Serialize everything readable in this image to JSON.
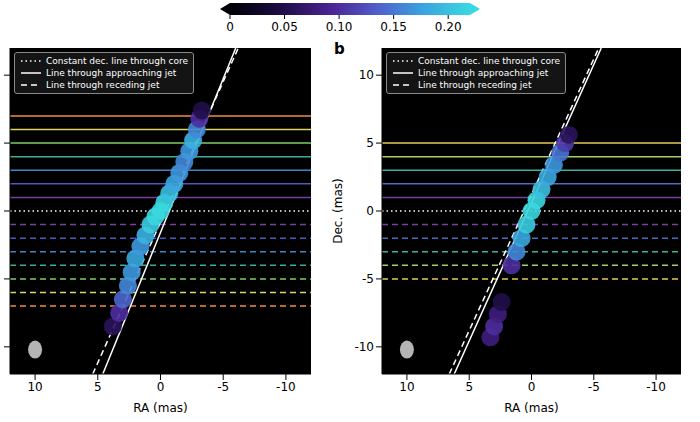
{
  "colorbar": {
    "range": [
      0,
      0.22
    ],
    "ticks": [
      0,
      0.05,
      {
        "value": 0.1,
        "label": "0.10"
      },
      0.15,
      {
        "value": 0.2,
        "label": "0.20"
      }
    ]
  },
  "chart_data": [
    {
      "type": "image",
      "x_label": "RA (mas)",
      "xlim": [
        12,
        -12
      ],
      "ylim": [
        -12,
        12
      ],
      "xticks": [
        10,
        5,
        0,
        -5,
        -10
      ],
      "yticks": [
        -10,
        -5,
        0,
        5,
        10
      ],
      "tick_labels": "x",
      "grid": false,
      "legend": "upper left",
      "intensity": {
        "x": [
          3.8,
          3.3,
          3.0,
          2.6,
          2.3,
          2.0,
          1.6,
          1.2,
          0.8,
          0.4,
          0,
          -0.3,
          -0.7,
          -1.1,
          -1.5,
          -1.9,
          -2.3,
          -2.6,
          -2.9,
          -3.1,
          -3.3
        ],
        "y": [
          -8.5,
          -7.5,
          -6.5,
          -5.5,
          -4.5,
          -3.5,
          -2.6,
          -1.8,
          -1.0,
          -0.4,
          0,
          0.6,
          1.3,
          2.0,
          2.8,
          3.6,
          4.4,
          5.2,
          6.0,
          6.8,
          7.4
        ],
        "values": [
          0.06,
          0.1,
          0.14,
          0.16,
          0.17,
          0.18,
          0.17,
          0.19,
          0.21,
          0.22,
          0.24,
          0.22,
          0.2,
          0.18,
          0.17,
          0.16,
          0.17,
          0.19,
          0.16,
          0.1,
          0.05
        ]
      },
      "series": [
        {
          "name": "Constant dec. line through core",
          "color": "#ffffff",
          "line_style": "dotted",
          "x": [
            12,
            -12
          ],
          "values": [
            0,
            0
          ]
        },
        {
          "name": "Line through approaching jet",
          "color": "#ffffff",
          "line_style": "solid",
          "x": [
            4.6,
            -6.0
          ],
          "values": [
            -12,
            12
          ]
        },
        {
          "name": "Line through receding jet",
          "color": "#ffffff",
          "line_style": "dashed",
          "x": [
            5.4,
            -6.2
          ],
          "values": [
            -12,
            12
          ]
        }
      ],
      "dec_lines": [
        {
          "value": 7,
          "color": "#f08c45",
          "line_style": "solid"
        },
        {
          "value": 6,
          "color": "#d9d864",
          "line_style": "solid"
        },
        {
          "value": 5,
          "color": "#7ccb6a",
          "line_style": "solid"
        },
        {
          "value": 4,
          "color": "#3aac9c",
          "line_style": "solid"
        },
        {
          "value": 3,
          "color": "#3f86c4",
          "line_style": "solid"
        },
        {
          "value": 2,
          "color": "#4f57c4",
          "line_style": "solid"
        },
        {
          "value": 1,
          "color": "#7a3fa0",
          "line_style": "solid"
        },
        {
          "value": -1,
          "color": "#7a3fa0",
          "line_style": "dashed"
        },
        {
          "value": -2,
          "color": "#4f57c4",
          "line_style": "dashed"
        },
        {
          "value": -3,
          "color": "#3f86c4",
          "line_style": "dashed"
        },
        {
          "value": -4,
          "color": "#3aac9c",
          "line_style": "dashed"
        },
        {
          "value": -5,
          "color": "#7ccb6a",
          "line_style": "dashed"
        },
        {
          "value": -6,
          "color": "#d9d864",
          "line_style": "dashed"
        },
        {
          "value": -7,
          "color": "#f08c45",
          "line_style": "dashed"
        }
      ],
      "beam": {
        "x": 10,
        "y": -10.2
      }
    },
    {
      "type": "image",
      "panel_label": "b",
      "x_label": "RA (mas)",
      "y_label": "Dec. (mas)",
      "xlim": [
        12,
        -12
      ],
      "ylim": [
        -12,
        12
      ],
      "xticks": [
        10,
        5,
        0,
        -5,
        -10
      ],
      "yticks": [
        -10,
        -5,
        0,
        5,
        10
      ],
      "grid": false,
      "legend": "upper left",
      "intensity": {
        "x": [
          3.3,
          3.0,
          2.7,
          2.4,
          1.6,
          1.2,
          0.8,
          0.4,
          0,
          -0.4,
          -0.8,
          -1.3,
          -1.8,
          -2.3,
          -2.7,
          -3.0
        ],
        "y": [
          -9.3,
          -8.5,
          -7.6,
          -6.7,
          -4.0,
          -3.0,
          -2.0,
          -1.0,
          0,
          0.8,
          1.6,
          2.5,
          3.4,
          4.3,
          5.0,
          5.6
        ],
        "values": [
          0.08,
          0.1,
          0.08,
          0.05,
          0.1,
          0.16,
          0.18,
          0.21,
          0.24,
          0.22,
          0.2,
          0.18,
          0.17,
          0.15,
          0.11,
          0.06
        ]
      },
      "series": [
        {
          "name": "Constant dec. line through core",
          "color": "#ffffff",
          "line_style": "dotted",
          "x": [
            12,
            -12
          ],
          "values": [
            0,
            0
          ]
        },
        {
          "name": "Line through approaching jet",
          "color": "#ffffff",
          "line_style": "solid",
          "x": [
            6.2,
            -5.6
          ],
          "values": [
            -12,
            12
          ]
        },
        {
          "name": "Line through receding jet",
          "color": "#ffffff",
          "line_style": "dashed",
          "x": [
            6.6,
            -5.4
          ],
          "values": [
            -12,
            12
          ]
        }
      ],
      "dec_lines": [
        {
          "value": 5,
          "color": "#e8c85a",
          "line_style": "solid"
        },
        {
          "value": 4,
          "color": "#a6d06a",
          "line_style": "solid"
        },
        {
          "value": 3,
          "color": "#3fb0a0",
          "line_style": "solid"
        },
        {
          "value": 2,
          "color": "#4f6ac4",
          "line_style": "solid"
        },
        {
          "value": 1,
          "color": "#7a3fa0",
          "line_style": "solid"
        },
        {
          "value": -1,
          "color": "#7a3fa0",
          "line_style": "dashed"
        },
        {
          "value": -2,
          "color": "#4f6ac4",
          "line_style": "dashed"
        },
        {
          "value": -3,
          "color": "#3fb0a0",
          "line_style": "dashed"
        },
        {
          "value": -4,
          "color": "#a6d06a",
          "line_style": "dashed"
        },
        {
          "value": -5,
          "color": "#e8c85a",
          "line_style": "dashed"
        }
      ],
      "beam": {
        "x": 10,
        "y": -10.2
      }
    }
  ]
}
